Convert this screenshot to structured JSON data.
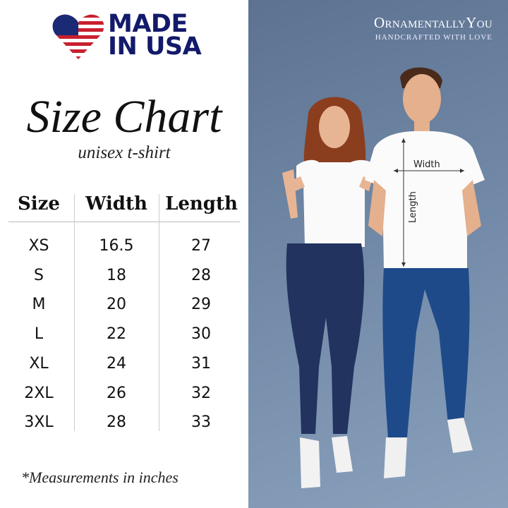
{
  "badge": {
    "text_line1": "MADE",
    "text_line2": "IN USA",
    "heart_colors": {
      "red": "#c8202f",
      "blue": "#1b2a74",
      "navy_text": "#131a6b"
    }
  },
  "title": "Size Chart",
  "subtitle": "unisex t-shirt",
  "table": {
    "headers": [
      "Size",
      "Width",
      "Length"
    ],
    "rows": [
      [
        "XS",
        "16.5",
        "27"
      ],
      [
        "S",
        "18",
        "28"
      ],
      [
        "M",
        "20",
        "29"
      ],
      [
        "L",
        "22",
        "30"
      ],
      [
        "XL",
        "24",
        "31"
      ],
      [
        "2XL",
        "26",
        "32"
      ],
      [
        "3XL",
        "28",
        "33"
      ]
    ]
  },
  "note": "*Measurements in inches",
  "brand": {
    "name": "OrnamentallyYou",
    "tagline": "Handcrafted with love"
  },
  "shirt_labels": {
    "width": "Width",
    "length": "Length"
  }
}
